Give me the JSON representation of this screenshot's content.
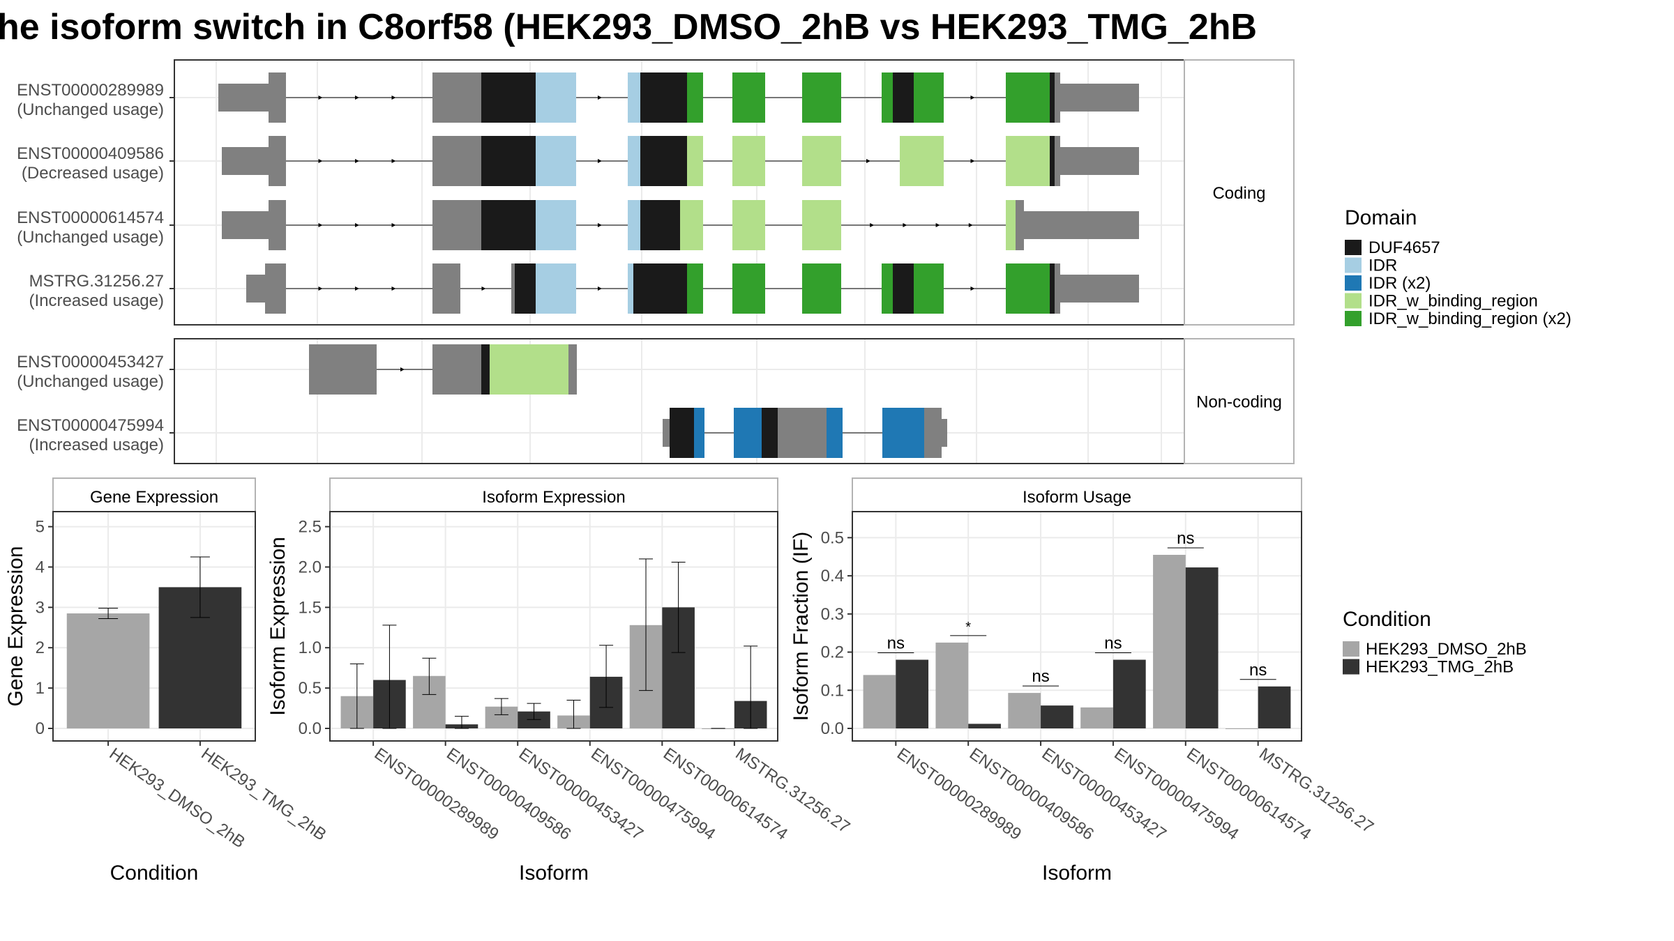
{
  "title": "he isoform switch in C8orf58 (HEK293_DMSO_2hB vs HEK293_TMG_2hB",
  "colors": {
    "DUF4657": "#1a1a1a",
    "IDR": "#a6cee3",
    "IDR (x2)": "#1f78b4",
    "IDR_w_binding_region": "#b2df8a",
    "IDR_w_binding_region (x2)": "#33a02c",
    "utr": "#808080",
    "dmso": "#a6a6a6",
    "tmg": "#333333",
    "panel_border": "#b3b3b3",
    "grid": "#ebebeb"
  },
  "structure_panels": [
    {
      "strip": "Coding",
      "isoforms": [
        {
          "id": "ENST00000289989",
          "usage": "(Unchanged usage)"
        },
        {
          "id": "ENST00000409586",
          "usage": "(Decreased usage)"
        },
        {
          "id": "ENST00000614574",
          "usage": "(Unchanged usage)"
        },
        {
          "id": "MSTRG.31256.27",
          "usage": "(Increased usage)"
        }
      ]
    },
    {
      "strip": "Non-coding",
      "isoforms": [
        {
          "id": "ENST00000453427",
          "usage": "(Unchanged usage)"
        },
        {
          "id": "ENST00000475994",
          "usage": "(Increased usage)"
        }
      ]
    }
  ],
  "legend_domain": {
    "title": "Domain",
    "items": [
      "DUF4657",
      "IDR",
      "IDR (x2)",
      "IDR_w_binding_region",
      "IDR_w_binding_region (x2)"
    ]
  },
  "legend_condition": {
    "title": "Condition",
    "items": [
      "HEK293_DMSO_2hB",
      "HEK293_TMG_2hB"
    ]
  },
  "chart_data": [
    {
      "type": "bar",
      "title": "Gene Expression",
      "xlabel": "Condition",
      "ylabel": "Gene Expression",
      "ylim": [
        0,
        5.2
      ],
      "yticks": [
        "0",
        "1",
        "2",
        "3",
        "4",
        "5"
      ],
      "categories": [
        "HEK293_DMSO_2hB",
        "HEK293_TMG_2hB"
      ],
      "values": [
        2.85,
        3.5
      ],
      "err_low": [
        2.72,
        2.75
      ],
      "err_high": [
        2.98,
        4.25
      ]
    },
    {
      "type": "bar",
      "title": "Isoform Expression",
      "xlabel": "Isoform",
      "ylabel": "Isoform Expression",
      "ylim": [
        0,
        2.6
      ],
      "yticks": [
        "0.0",
        "0.5",
        "1.0",
        "1.5",
        "2.0",
        "2.5"
      ],
      "categories": [
        "ENST00000289989",
        "ENST00000409586",
        "ENST00000453427",
        "ENST00000475994",
        "ENST00000614574",
        "MSTRG.31256.27"
      ],
      "series": [
        {
          "name": "HEK293_DMSO_2hB",
          "values": [
            0.4,
            0.65,
            0.27,
            0.16,
            1.28,
            0.0
          ],
          "err_low": [
            0.0,
            0.42,
            0.17,
            0.0,
            0.47,
            0.0
          ],
          "err_high": [
            0.8,
            0.87,
            0.37,
            0.35,
            2.1,
            0.0
          ]
        },
        {
          "name": "HEK293_TMG_2hB",
          "values": [
            0.6,
            0.05,
            0.21,
            0.64,
            1.5,
            0.34
          ],
          "err_low": [
            0.0,
            0.0,
            0.11,
            0.26,
            0.94,
            0.0
          ],
          "err_high": [
            1.28,
            0.15,
            0.31,
            1.03,
            2.06,
            1.02
          ]
        }
      ]
    },
    {
      "type": "bar",
      "title": "Isoform Usage",
      "xlabel": "Isoform",
      "ylabel": "Isoform Fraction (IF)",
      "ylim": [
        0,
        0.55
      ],
      "yticks": [
        "0.0",
        "0.1",
        "0.2",
        "0.3",
        "0.4",
        "0.5"
      ],
      "categories": [
        "ENST00000289989",
        "ENST00000409586",
        "ENST00000453427",
        "ENST00000475994",
        "ENST00000614574",
        "MSTRG.31256.27"
      ],
      "series": [
        {
          "name": "HEK293_DMSO_2hB",
          "values": [
            0.14,
            0.225,
            0.093,
            0.055,
            0.455,
            0.0
          ]
        },
        {
          "name": "HEK293_TMG_2hB",
          "values": [
            0.18,
            0.012,
            0.06,
            0.18,
            0.422,
            0.11
          ]
        }
      ],
      "significance": [
        "ns",
        "*",
        "ns",
        "ns",
        "ns",
        "ns"
      ]
    }
  ]
}
